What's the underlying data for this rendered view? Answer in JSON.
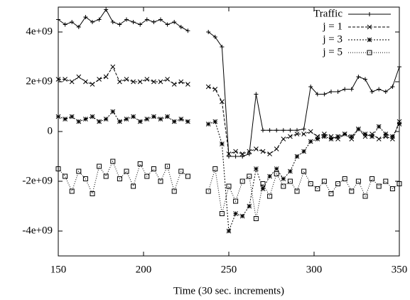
{
  "chart_data": {
    "type": "line",
    "xlabel": "Time (30 sec. increments)",
    "x": [
      150,
      154,
      158,
      162,
      166,
      170,
      174,
      178,
      182,
      186,
      190,
      194,
      198,
      202,
      206,
      210,
      214,
      218,
      222,
      226,
      230,
      234,
      238,
      242,
      246,
      250,
      254,
      258,
      262,
      266,
      270,
      274,
      278,
      282,
      286,
      290,
      294,
      298,
      302,
      306,
      310,
      314,
      318,
      322,
      326,
      330,
      334,
      338,
      342,
      346,
      350
    ],
    "xlim": [
      150,
      350
    ],
    "xticks": [
      150,
      200,
      250,
      300,
      350
    ],
    "ylim": [
      -5000000000.0,
      5000000000.0
    ],
    "yticks": [
      {
        "value": -4000000000.0,
        "label": "-4e+09"
      },
      {
        "value": -2000000000.0,
        "label": "-2e+09"
      },
      0,
      {
        "value": 2000000000.0,
        "label": "2e+09"
      },
      {
        "value": 4000000000.0,
        "label": "4e+09"
      }
    ],
    "legend": "top-right",
    "series": [
      {
        "name": "Traffic",
        "color": "#000000",
        "marker": "plus",
        "dash": "",
        "values": [
          4500000000.0,
          4300000000.0,
          4400000000.0,
          4200000000.0,
          4600000000.0,
          4400000000.0,
          4500000000.0,
          4900000000.0,
          4400000000.0,
          4300000000.0,
          4500000000.0,
          4400000000.0,
          4300000000.0,
          4500000000.0,
          4400000000.0,
          4500000000.0,
          4300000000.0,
          4400000000.0,
          4200000000.0,
          4050000000.0,
          null,
          null,
          4000000000.0,
          3800000000.0,
          3400000000.0,
          -1000000000.0,
          -1000000000.0,
          -1000000000.0,
          -900000000.0,
          1500000000.0,
          50000000.0,
          50000000.0,
          50000000.0,
          50000000.0,
          50000000.0,
          50000000.0,
          100000000.0,
          1800000000.0,
          1500000000.0,
          1500000000.0,
          1600000000.0,
          1600000000.0,
          1700000000.0,
          1700000000.0,
          2200000000.0,
          2100000000.0,
          1600000000.0,
          1700000000.0,
          1600000000.0,
          1800000000.0,
          2600000000.0
        ]
      },
      {
        "name": "j = 1",
        "color": "#000000",
        "marker": "cross",
        "dash": "4,2",
        "values": [
          2100000000.0,
          2100000000.0,
          2000000000.0,
          2200000000.0,
          2000000000.0,
          1900000000.0,
          2100000000.0,
          2200000000.0,
          2600000000.0,
          2000000000.0,
          2100000000.0,
          2000000000.0,
          2000000000.0,
          2100000000.0,
          2000000000.0,
          2000000000.0,
          2100000000.0,
          1900000000.0,
          2000000000.0,
          1900000000.0,
          null,
          null,
          1800000000.0,
          1700000000.0,
          1200000000.0,
          -900000000.0,
          -800000000.0,
          -900000000.0,
          -800000000.0,
          -700000000.0,
          -800000000.0,
          -900000000.0,
          -700000000.0,
          -300000000.0,
          -200000000.0,
          -100000000.0,
          -100000000.0,
          0,
          -200000000.0,
          -100000000.0,
          -200000000.0,
          -300000000.0,
          -100000000.0,
          -300000000.0,
          100000000.0,
          -200000000.0,
          -100000000.0,
          -300000000.0,
          -200000000.0,
          -300000000.0,
          400000000.0
        ]
      },
      {
        "name": "j = 3",
        "color": "#000000",
        "marker": "star",
        "dash": "2,2",
        "values": [
          600000000.0,
          500000000.0,
          600000000.0,
          400000000.0,
          500000000.0,
          600000000.0,
          400000000.0,
          500000000.0,
          800000000.0,
          400000000.0,
          500000000.0,
          600000000.0,
          400000000.0,
          500000000.0,
          600000000.0,
          500000000.0,
          600000000.0,
          400000000.0,
          500000000.0,
          400000000.0,
          null,
          null,
          300000000.0,
          400000000.0,
          -500000000.0,
          -4000000000.0,
          -3300000000.0,
          -3400000000.0,
          -3000000000.0,
          -1500000000.0,
          -2300000000.0,
          -1800000000.0,
          -1500000000.0,
          -1900000000.0,
          -1600000000.0,
          -1000000000.0,
          -800000000.0,
          -400000000.0,
          -300000000.0,
          -200000000.0,
          -300000000.0,
          -200000000.0,
          -100000000.0,
          -200000000.0,
          100000000.0,
          -100000000.0,
          -200000000.0,
          200000000.0,
          -100000000.0,
          -200000000.0,
          300000000.0
        ]
      },
      {
        "name": "j = 5",
        "color": "#000000",
        "marker": "box",
        "dash": "1,2",
        "values": [
          -1500000000.0,
          -1800000000.0,
          -2400000000.0,
          -1600000000.0,
          -1900000000.0,
          -2500000000.0,
          -1400000000.0,
          -1800000000.0,
          -1200000000.0,
          -1900000000.0,
          -1600000000.0,
          -2200000000.0,
          -1300000000.0,
          -1800000000.0,
          -1500000000.0,
          -2000000000.0,
          -1400000000.0,
          -2400000000.0,
          -1600000000.0,
          -1800000000.0,
          null,
          null,
          -2400000000.0,
          -1500000000.0,
          -3300000000.0,
          -2200000000.0,
          -2800000000.0,
          -2000000000.0,
          -1800000000.0,
          -3500000000.0,
          -2100000000.0,
          -2600000000.0,
          -1700000000.0,
          -2200000000.0,
          -2000000000.0,
          -2400000000.0,
          -1600000000.0,
          -2100000000.0,
          -2300000000.0,
          -2000000000.0,
          -2500000000.0,
          -2100000000.0,
          -1900000000.0,
          -2400000000.0,
          -2000000000.0,
          -2600000000.0,
          -1900000000.0,
          -2200000000.0,
          -2000000000.0,
          -2300000000.0,
          -2100000000.0
        ]
      }
    ]
  }
}
